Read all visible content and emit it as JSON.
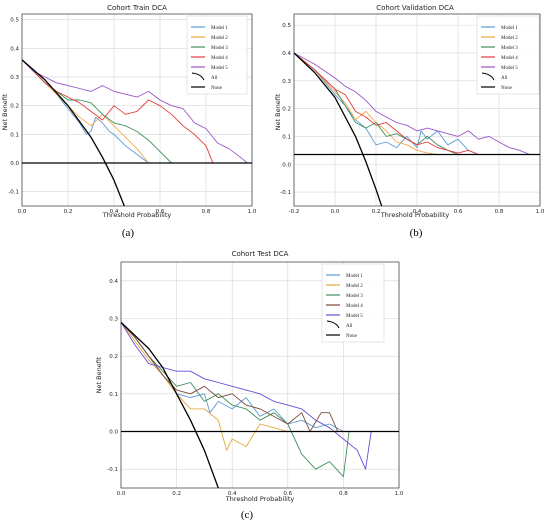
{
  "chart_data": [
    {
      "type": "line",
      "title": "Cohort Train DCA",
      "caption": "(a)",
      "xlabel": "Threshold Probability",
      "ylabel": "Net Benefit",
      "xlim": [
        0.0,
        1.0
      ],
      "ylim": [
        -0.15,
        0.52
      ],
      "xticks": [
        "0.0",
        "0.2",
        "0.4",
        "0.6",
        "0.8",
        "1.0"
      ],
      "xtick_values": [
        0.0,
        0.2,
        0.4,
        0.6,
        0.8,
        1.0
      ],
      "yticks": [
        "-0.1",
        "0.0",
        "0.1",
        "0.2",
        "0.3",
        "0.4",
        "0.5"
      ],
      "ytick_values": [
        -0.1,
        0.0,
        0.1,
        0.2,
        0.3,
        0.4,
        0.5
      ],
      "grid": true,
      "legend_position": "top-right",
      "series": [
        {
          "name": "Model 1",
          "color": "#5b9bd5",
          "x": [
            0,
            0.05,
            0.1,
            0.15,
            0.2,
            0.25,
            0.28,
            0.3,
            0.32,
            0.35,
            0.38,
            0.4,
            0.45,
            0.5,
            0.55
          ],
          "y": [
            0.36,
            0.32,
            0.28,
            0.24,
            0.19,
            0.14,
            0.1,
            0.11,
            0.16,
            0.14,
            0.11,
            0.1,
            0.06,
            0.03,
            0.0
          ]
        },
        {
          "name": "Model 2",
          "color": "#f4a64a",
          "x": [
            0,
            0.05,
            0.1,
            0.15,
            0.2,
            0.25,
            0.3,
            0.35,
            0.4,
            0.45,
            0.5,
            0.52,
            0.55
          ],
          "y": [
            0.36,
            0.32,
            0.28,
            0.24,
            0.2,
            0.16,
            0.13,
            0.17,
            0.13,
            0.09,
            0.05,
            0.03,
            0.0
          ]
        },
        {
          "name": "Model 3",
          "color": "#3f8f5a",
          "x": [
            0,
            0.05,
            0.1,
            0.15,
            0.2,
            0.25,
            0.3,
            0.35,
            0.4,
            0.45,
            0.5,
            0.55,
            0.6,
            0.65
          ],
          "y": [
            0.36,
            0.32,
            0.28,
            0.25,
            0.22,
            0.22,
            0.21,
            0.17,
            0.14,
            0.13,
            0.11,
            0.08,
            0.04,
            0.0
          ]
        },
        {
          "name": "Model 4",
          "color": "#e23b3b",
          "x": [
            0,
            0.05,
            0.1,
            0.15,
            0.2,
            0.25,
            0.3,
            0.35,
            0.4,
            0.45,
            0.5,
            0.55,
            0.6,
            0.65,
            0.7,
            0.75,
            0.8,
            0.83
          ],
          "y": [
            0.36,
            0.32,
            0.28,
            0.25,
            0.23,
            0.21,
            0.18,
            0.15,
            0.2,
            0.17,
            0.18,
            0.22,
            0.2,
            0.17,
            0.13,
            0.1,
            0.06,
            0.0
          ]
        },
        {
          "name": "Model 5",
          "color": "#9a55c8",
          "x": [
            0,
            0.05,
            0.1,
            0.15,
            0.2,
            0.25,
            0.3,
            0.35,
            0.4,
            0.45,
            0.5,
            0.55,
            0.6,
            0.65,
            0.7,
            0.75,
            0.8,
            0.85,
            0.9,
            0.95,
            0.98
          ],
          "y": [
            0.36,
            0.32,
            0.3,
            0.28,
            0.27,
            0.26,
            0.25,
            0.27,
            0.25,
            0.24,
            0.23,
            0.25,
            0.22,
            0.2,
            0.19,
            0.14,
            0.12,
            0.07,
            0.05,
            0.02,
            0.0
          ]
        },
        {
          "name": "All",
          "color": "#000000",
          "x": [
            0,
            0.1,
            0.2,
            0.3,
            0.35,
            0.4,
            0.45,
            0.5
          ],
          "y": [
            0.36,
            0.29,
            0.2,
            0.09,
            0.02,
            -0.06,
            -0.16,
            -0.28
          ]
        },
        {
          "name": "None",
          "color": "#000000",
          "x": [
            0,
            1.0
          ],
          "y": [
            0,
            0
          ]
        }
      ]
    },
    {
      "type": "line",
      "title": "Cohort Validation DCA",
      "caption": "(b)",
      "xlabel": "Threshold Probability",
      "ylabel": "Net Benefit",
      "xlim": [
        -0.2,
        1.0
      ],
      "ylim": [
        -0.15,
        0.54
      ],
      "xticks": [
        "-0.2",
        "0.0",
        "0.2",
        "0.4",
        "0.6",
        "0.8",
        "1.0"
      ],
      "xtick_values": [
        -0.2,
        0.0,
        0.2,
        0.4,
        0.6,
        0.8,
        1.0
      ],
      "yticks": [
        "-0.1",
        "0.0",
        "0.1",
        "0.2",
        "0.3",
        "0.4",
        "0.5"
      ],
      "ytick_values": [
        -0.1,
        0.0,
        0.1,
        0.2,
        0.3,
        0.4,
        0.5
      ],
      "grid": true,
      "legend_position": "top-right",
      "series": [
        {
          "name": "Model 1",
          "color": "#5b9bd5",
          "x": [
            -0.2,
            -0.1,
            0.0,
            0.05,
            0.1,
            0.15,
            0.2,
            0.25,
            0.3,
            0.35,
            0.4,
            0.42,
            0.45,
            0.5,
            0.55,
            0.6,
            0.65,
            0.7
          ],
          "y": [
            0.4,
            0.34,
            0.25,
            0.21,
            0.16,
            0.13,
            0.07,
            0.08,
            0.06,
            0.1,
            0.06,
            0.12,
            0.09,
            0.12,
            0.07,
            0.09,
            0.05,
            0.035
          ]
        },
        {
          "name": "Model 2",
          "color": "#f4a64a",
          "x": [
            -0.2,
            -0.1,
            0.0,
            0.05,
            0.1,
            0.15,
            0.2,
            0.25,
            0.3,
            0.35,
            0.4,
            0.45,
            0.5
          ],
          "y": [
            0.4,
            0.34,
            0.26,
            0.22,
            0.16,
            0.19,
            0.15,
            0.12,
            0.08,
            0.07,
            0.05,
            0.04,
            0.035
          ]
        },
        {
          "name": "Model 3",
          "color": "#3f8f5a",
          "x": [
            -0.2,
            -0.1,
            0.0,
            0.05,
            0.1,
            0.15,
            0.2,
            0.25,
            0.3,
            0.35,
            0.4,
            0.45,
            0.5,
            0.55,
            0.6
          ],
          "y": [
            0.4,
            0.34,
            0.27,
            0.21,
            0.15,
            0.13,
            0.15,
            0.1,
            0.11,
            0.09,
            0.07,
            0.1,
            0.07,
            0.05,
            0.035
          ]
        },
        {
          "name": "Model 4",
          "color": "#e23b3b",
          "x": [
            -0.2,
            -0.1,
            0.0,
            0.05,
            0.1,
            0.15,
            0.2,
            0.25,
            0.3,
            0.35,
            0.4,
            0.45,
            0.5,
            0.55,
            0.6,
            0.65,
            0.7
          ],
          "y": [
            0.4,
            0.34,
            0.27,
            0.25,
            0.19,
            0.17,
            0.14,
            0.15,
            0.12,
            0.09,
            0.07,
            0.08,
            0.06,
            0.05,
            0.04,
            0.05,
            0.035
          ]
        },
        {
          "name": "Model 5",
          "color": "#9a55c8",
          "x": [
            -0.2,
            -0.1,
            0.0,
            0.05,
            0.1,
            0.15,
            0.2,
            0.25,
            0.3,
            0.35,
            0.4,
            0.45,
            0.5,
            0.55,
            0.6,
            0.65,
            0.7,
            0.75,
            0.8,
            0.85,
            0.9,
            0.95
          ],
          "y": [
            0.4,
            0.36,
            0.31,
            0.28,
            0.26,
            0.23,
            0.19,
            0.17,
            0.15,
            0.14,
            0.12,
            0.13,
            0.12,
            0.11,
            0.1,
            0.12,
            0.09,
            0.1,
            0.08,
            0.06,
            0.05,
            0.035
          ]
        },
        {
          "name": "All",
          "color": "#000000",
          "x": [
            -0.2,
            -0.1,
            0.0,
            0.1,
            0.15,
            0.2,
            0.25,
            0.3
          ],
          "y": [
            0.4,
            0.33,
            0.24,
            0.1,
            0.01,
            -0.09,
            -0.2,
            -0.32
          ]
        },
        {
          "name": "None",
          "color": "#000000",
          "x": [
            -0.2,
            1.0
          ],
          "y": [
            0.035,
            0.035
          ]
        }
      ]
    },
    {
      "type": "line",
      "title": "Cohort Test DCA",
      "caption": "(c)",
      "xlabel": "Threshold Probability",
      "ylabel": "Net Benefit",
      "xlim": [
        0.0,
        1.0
      ],
      "ylim": [
        -0.15,
        0.45
      ],
      "xticks": [
        "0.0",
        "0.2",
        "0.4",
        "0.6",
        "0.8",
        "1.0"
      ],
      "xtick_values": [
        0.0,
        0.2,
        0.4,
        0.6,
        0.8,
        1.0
      ],
      "yticks": [
        "-0.1",
        "0.0",
        "0.1",
        "0.2",
        "0.3",
        "0.4"
      ],
      "ytick_values": [
        -0.1,
        0.0,
        0.1,
        0.2,
        0.3,
        0.4
      ],
      "grid": true,
      "legend_position": "top-right",
      "series": [
        {
          "name": "Model 1",
          "color": "#5b9bd5",
          "x": [
            0,
            0.05,
            0.1,
            0.15,
            0.2,
            0.25,
            0.3,
            0.32,
            0.35,
            0.4,
            0.45,
            0.5,
            0.55,
            0.6,
            0.65,
            0.7,
            0.75,
            0.8
          ],
          "y": [
            0.29,
            0.25,
            0.2,
            0.15,
            0.1,
            0.09,
            0.1,
            0.05,
            0.08,
            0.06,
            0.09,
            0.04,
            0.06,
            0.02,
            0.03,
            0.01,
            0.02,
            0.0
          ]
        },
        {
          "name": "Model 2",
          "color": "#e3a73c",
          "x": [
            0,
            0.05,
            0.1,
            0.15,
            0.2,
            0.25,
            0.3,
            0.35,
            0.38,
            0.4,
            0.45,
            0.5,
            0.55,
            0.6
          ],
          "y": [
            0.29,
            0.24,
            0.19,
            0.15,
            0.1,
            0.06,
            0.06,
            0.03,
            -0.05,
            -0.02,
            -0.04,
            0.02,
            0.01,
            0.0
          ]
        },
        {
          "name": "Model 3",
          "color": "#3f8f5a",
          "x": [
            0,
            0.05,
            0.1,
            0.15,
            0.2,
            0.25,
            0.3,
            0.35,
            0.4,
            0.45,
            0.5,
            0.55,
            0.6,
            0.65,
            0.7,
            0.75,
            0.8,
            0.82
          ],
          "y": [
            0.29,
            0.25,
            0.2,
            0.16,
            0.12,
            0.13,
            0.08,
            0.1,
            0.07,
            0.06,
            0.03,
            0.05,
            0.02,
            -0.06,
            -0.1,
            -0.08,
            -0.12,
            0.0
          ]
        },
        {
          "name": "Model 4",
          "color": "#7a4a3a",
          "x": [
            0,
            0.05,
            0.1,
            0.15,
            0.2,
            0.25,
            0.3,
            0.35,
            0.4,
            0.45,
            0.5,
            0.55,
            0.6,
            0.65,
            0.68,
            0.72,
            0.75,
            0.78,
            0.8
          ],
          "y": [
            0.29,
            0.25,
            0.2,
            0.15,
            0.11,
            0.1,
            0.12,
            0.09,
            0.1,
            0.07,
            0.06,
            0.04,
            0.02,
            0.05,
            0.0,
            0.05,
            0.05,
            0.0,
            0.0
          ]
        },
        {
          "name": "Model 5",
          "color": "#6b4bd6",
          "x": [
            0,
            0.05,
            0.1,
            0.15,
            0.2,
            0.25,
            0.3,
            0.35,
            0.4,
            0.45,
            0.5,
            0.55,
            0.6,
            0.65,
            0.7,
            0.75,
            0.8,
            0.85,
            0.88,
            0.9
          ],
          "y": [
            0.29,
            0.23,
            0.18,
            0.17,
            0.16,
            0.16,
            0.14,
            0.13,
            0.12,
            0.11,
            0.1,
            0.08,
            0.07,
            0.06,
            0.03,
            0.01,
            -0.02,
            -0.05,
            -0.1,
            0.0
          ]
        },
        {
          "name": "All",
          "color": "#000000",
          "x": [
            0,
            0.1,
            0.15,
            0.2,
            0.25,
            0.3,
            0.35,
            0.4
          ],
          "y": [
            0.29,
            0.22,
            0.17,
            0.1,
            0.03,
            -0.05,
            -0.15,
            -0.26
          ]
        },
        {
          "name": "None",
          "color": "#000000",
          "x": [
            0,
            1.0
          ],
          "y": [
            0,
            0
          ]
        }
      ]
    }
  ]
}
